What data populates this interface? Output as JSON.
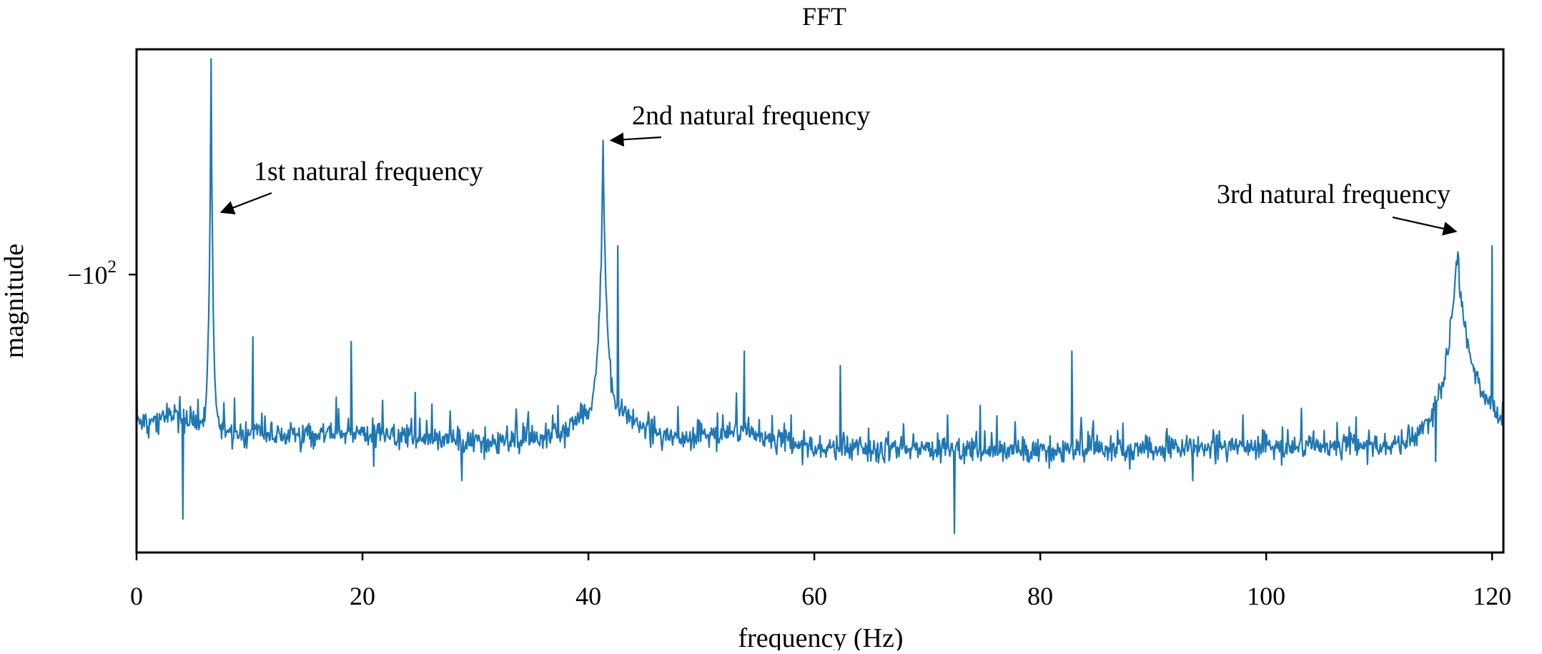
{
  "chart_data": {
    "type": "line",
    "title": "FFT",
    "xlabel": "frequency (Hz)",
    "ylabel": "magnitude",
    "xlim": [
      0,
      121
    ],
    "y_scale": "symlog",
    "ylim_log_magnitude": [
      1.42,
      2.47
    ],
    "x_ticks": [
      "0",
      "20",
      "40",
      "60",
      "80",
      "100",
      "120"
    ],
    "x_tick_values": [
      0,
      20,
      40,
      60,
      80,
      100,
      120
    ],
    "y_tick": {
      "base": "−102",
      "label_sign_base": "−10",
      "exponent": "2",
      "log_magnitude": 2.0
    },
    "grid": false,
    "series": [
      {
        "color": "#1f77b4",
        "peaks": [
          {
            "x": 6.6,
            "y_log": 2.45
          },
          {
            "x": 41.3,
            "y_log": 2.28
          },
          {
            "x": 116.9,
            "y_log": 2.02
          },
          {
            "x": 120.0,
            "y_log": 2.06
          },
          {
            "x": 10.3,
            "y_log": 1.87
          },
          {
            "x": 19.0,
            "y_log": 1.86
          },
          {
            "x": 42.6,
            "y_log": 2.06
          },
          {
            "x": 53.8,
            "y_log": 1.84
          },
          {
            "x": 62.3,
            "y_log": 1.81
          },
          {
            "x": 82.8,
            "y_log": 1.84
          }
        ],
        "dips": [
          {
            "x": 4.1,
            "y_log": 1.49
          },
          {
            "x": 21.0,
            "y_log": 1.6
          },
          {
            "x": 28.8,
            "y_log": 1.57
          },
          {
            "x": 72.4,
            "y_log": 1.46
          },
          {
            "x": 93.5,
            "y_log": 1.57
          },
          {
            "x": 115.0,
            "y_log": 1.61
          }
        ]
      }
    ],
    "annotations": [
      {
        "text": "1st natural frequency",
        "target_x": 7.5,
        "target_y_log": 2.13
      },
      {
        "text": "2nd natural frequency",
        "target_x": 42.0,
        "target_y_log": 2.28
      },
      {
        "text": "3rd natural frequency",
        "target_x": 116.8,
        "target_y_log": 2.09
      }
    ]
  }
}
